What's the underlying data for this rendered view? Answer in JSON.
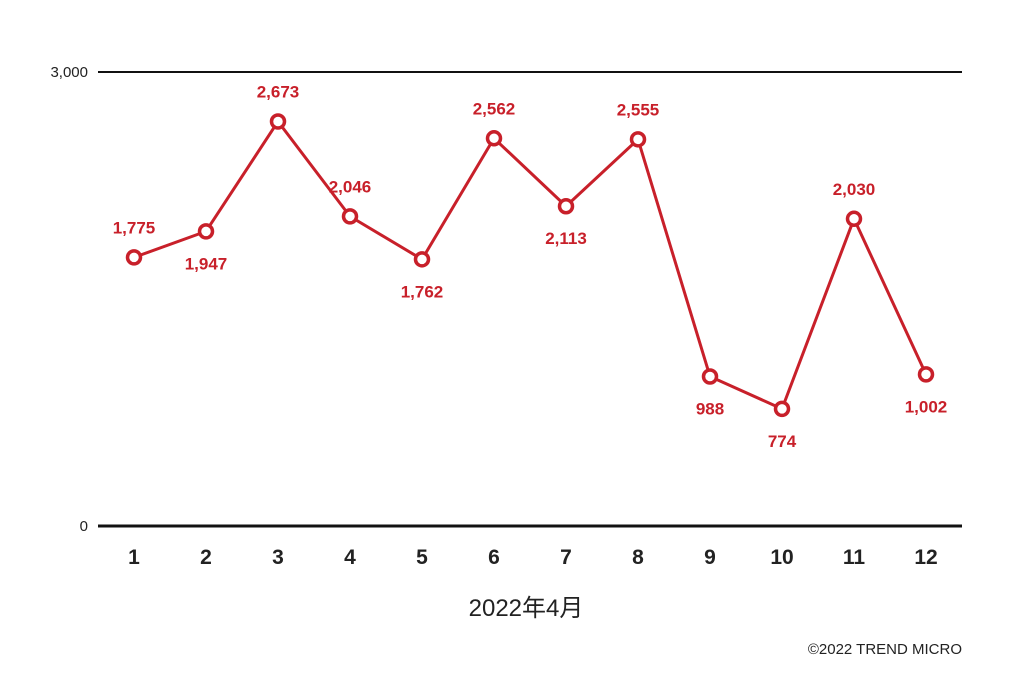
{
  "colors": {
    "series": "#c8202a",
    "axis": "#111111",
    "text": "#222222"
  },
  "chart_data": {
    "type": "line",
    "title": "",
    "xlabel": "2022年4月",
    "ylabel": "",
    "ylim": [
      0,
      3000
    ],
    "yticks": [
      {
        "value": 0,
        "label": "0"
      },
      {
        "value": 3000,
        "label": "3,000"
      }
    ],
    "categories": [
      "1",
      "2",
      "3",
      "4",
      "5",
      "6",
      "7",
      "8",
      "9",
      "10",
      "11",
      "12"
    ],
    "values": [
      1775,
      1947,
      2673,
      2046,
      1762,
      2562,
      2113,
      2555,
      988,
      774,
      2030,
      1002
    ],
    "data_labels": [
      "1,775",
      "1,947",
      "2,673",
      "2,046",
      "1,762",
      "2,562",
      "2,113",
      "2,555",
      "988",
      "774",
      "2,030",
      "1,002"
    ],
    "label_position": [
      "above",
      "below",
      "above",
      "above",
      "below",
      "above",
      "below",
      "above",
      "below",
      "below",
      "above",
      "below"
    ],
    "grid": false,
    "legend": "none"
  },
  "credit": "©2022 TREND MICRO"
}
